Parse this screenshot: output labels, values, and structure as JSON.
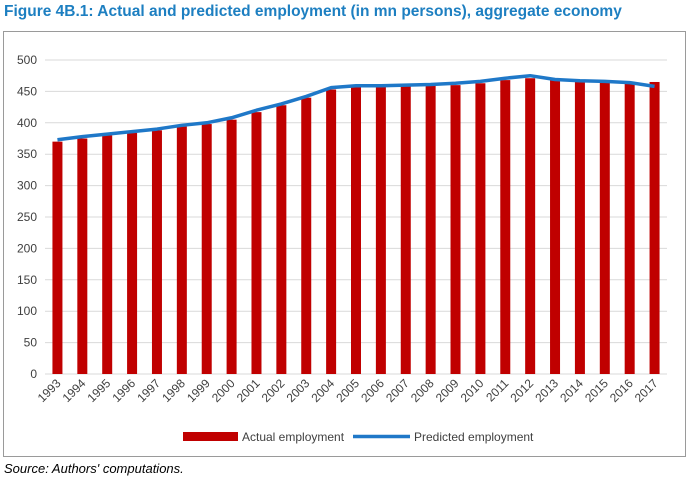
{
  "title": "Figure 4B.1: Actual and predicted employment (in mn persons), aggregate economy",
  "source": "Source: Authors' computations.",
  "chart_data": {
    "type": "bar",
    "title": "Figure 4B.1: Actual and predicted employment (in mn persons), aggregate economy",
    "xlabel": "",
    "ylabel": "",
    "ylim": [
      0,
      500
    ],
    "yticks": [
      0,
      50,
      100,
      150,
      200,
      250,
      300,
      350,
      400,
      450,
      500
    ],
    "grid": true,
    "legend": "bottom",
    "categories": [
      "1993",
      "1994",
      "1995",
      "1996",
      "1997",
      "1998",
      "1999",
      "2000",
      "2001",
      "2002",
      "2003",
      "2004",
      "2005",
      "2006",
      "2007",
      "2008",
      "2009",
      "2010",
      "2011",
      "2012",
      "2013",
      "2014",
      "2015",
      "2016",
      "2017"
    ],
    "series": [
      {
        "name": "Actual employment",
        "type": "bar",
        "color": "#c00000",
        "values": [
          370,
          375,
          380,
          384,
          388,
          394,
          398,
          405,
          417,
          428,
          440,
          453,
          457,
          457,
          458,
          459,
          460,
          463,
          468,
          471,
          468,
          466,
          465,
          462,
          465
        ]
      },
      {
        "name": "Predicted employment",
        "type": "line",
        "color": "#1f78c8",
        "values": [
          373,
          378,
          382,
          386,
          390,
          396,
          400,
          408,
          420,
          430,
          442,
          456,
          459,
          459,
          460,
          461,
          463,
          466,
          471,
          475,
          469,
          467,
          466,
          464,
          458
        ]
      }
    ]
  }
}
